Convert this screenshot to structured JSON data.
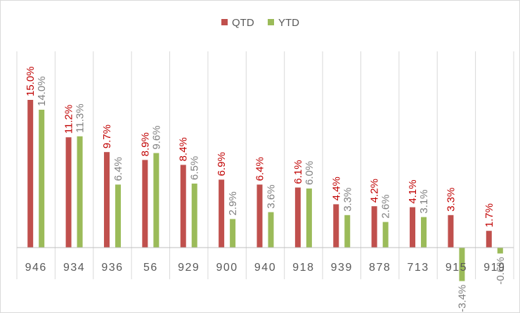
{
  "chart_data": {
    "type": "bar",
    "title": "",
    "xlabel": "",
    "ylabel": "",
    "ylim": [
      -4,
      16
    ],
    "grid": false,
    "legend_position": "top-center",
    "categories": [
      "946",
      "934",
      "936",
      "56",
      "929",
      "900",
      "940",
      "918",
      "939",
      "878",
      "713",
      "915",
      "919"
    ],
    "series": [
      {
        "name": "QTD",
        "color": "#c0504d",
        "label_color": "#c00000",
        "values": [
          15.0,
          11.2,
          9.7,
          8.9,
          8.4,
          6.9,
          6.4,
          6.1,
          4.4,
          4.2,
          4.1,
          3.3,
          1.7
        ],
        "labels": [
          "15.0%",
          "11.2%",
          "9.7%",
          "8.9%",
          "8.4%",
          "6.9%",
          "6.4%",
          "6.1%",
          "4.4%",
          "4.2%",
          "4.1%",
          "3.3%",
          "1.7%"
        ]
      },
      {
        "name": "YTD",
        "color": "#9bbb59",
        "label_color": "#7f7f7f",
        "values": [
          14.0,
          11.3,
          6.4,
          9.6,
          6.5,
          2.9,
          3.6,
          6.0,
          3.3,
          2.6,
          3.1,
          -3.4,
          -0.6
        ],
        "labels": [
          "14.0%",
          "11.3%",
          "6.4%",
          "9.6%",
          "6.5%",
          "2.9%",
          "3.6%",
          "6.0%",
          "3.3%",
          "2.6%",
          "3.1%",
          "-3.4%",
          "-0.6%"
        ]
      }
    ]
  }
}
